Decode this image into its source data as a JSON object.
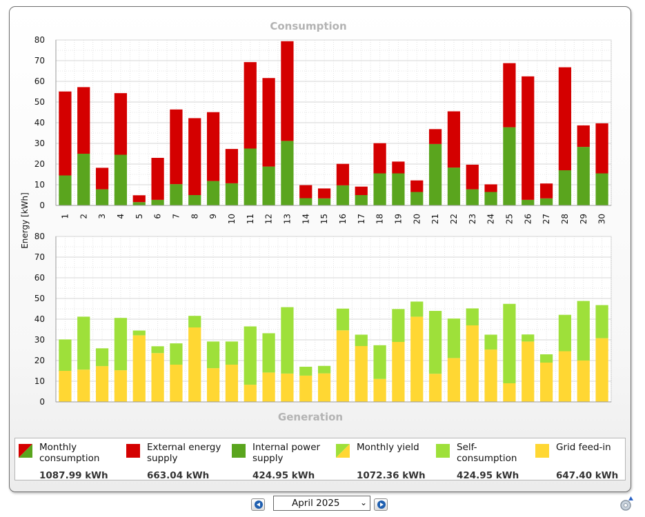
{
  "nav": {
    "month": "April 2025"
  },
  "legend": [
    {
      "label": "Monthly consumption",
      "value": "1087.99 kWh",
      "swatch": "split-red-green"
    },
    {
      "label": "External energy supply",
      "value": "663.04 kWh",
      "swatch": "#d40000"
    },
    {
      "label": "Internal power supply",
      "value": "424.95 kWh",
      "swatch": "#5aa51e"
    },
    {
      "label": "Monthly yield",
      "value": "1072.36 kWh",
      "swatch": "split-lightgreen-yellow"
    },
    {
      "label": "Self-consumption",
      "value": "424.95 kWh",
      "swatch": "#9ee03a"
    },
    {
      "label": "Grid feed-in",
      "value": "647.40 kWh",
      "swatch": "#ffd733"
    }
  ],
  "chart_data": [
    {
      "type": "bar",
      "stacked": true,
      "title": "Consumption",
      "ylabel": "Energy [kWh]",
      "ylim": [
        0,
        80
      ],
      "yticks": [
        0,
        10,
        20,
        30,
        40,
        50,
        60,
        70,
        80
      ],
      "grid": true,
      "categories": [
        "1",
        "2",
        "3",
        "4",
        "5",
        "6",
        "7",
        "8",
        "9",
        "10",
        "11",
        "12",
        "13",
        "14",
        "15",
        "16",
        "17",
        "18",
        "19",
        "20",
        "21",
        "22",
        "23",
        "24",
        "25",
        "26",
        "27",
        "28",
        "29",
        "30"
      ],
      "series": [
        {
          "name": "Internal power supply",
          "color": "#5aa51e",
          "values": [
            14.5,
            25,
            7.8,
            24.5,
            1.6,
            2.7,
            10.3,
            5,
            11.8,
            10.7,
            27.5,
            18.8,
            31.2,
            3.5,
            3.4,
            9.7,
            5,
            15.5,
            15.5,
            6.5,
            29.7,
            18.3,
            7.8,
            6.5,
            37.8,
            2.7,
            3.4,
            17,
            28.3,
            15.5
          ]
        },
        {
          "name": "External energy supply",
          "color": "#d40000",
          "values": [
            40.6,
            32.2,
            10.4,
            29.8,
            3.3,
            20.3,
            36.1,
            37.2,
            33.3,
            16.6,
            41.8,
            42.8,
            48.2,
            6.3,
            4.8,
            10.4,
            4.1,
            14.6,
            5.7,
            5.6,
            7.2,
            27.2,
            11.9,
            3.7,
            31,
            59.7,
            7.2,
            49.8,
            10.4,
            24.2
          ]
        }
      ]
    },
    {
      "type": "bar",
      "stacked": true,
      "title": "Generation",
      "ylabel": "Energy [kWh]",
      "ylim": [
        0,
        80
      ],
      "yticks": [
        0,
        10,
        20,
        30,
        40,
        50,
        60,
        70,
        80
      ],
      "grid": true,
      "categories": [
        "1",
        "2",
        "3",
        "4",
        "5",
        "6",
        "7",
        "8",
        "9",
        "10",
        "11",
        "12",
        "13",
        "14",
        "15",
        "16",
        "17",
        "18",
        "19",
        "20",
        "21",
        "22",
        "23",
        "24",
        "25",
        "26",
        "27",
        "28",
        "29",
        "30"
      ],
      "series": [
        {
          "name": "Grid feed-in",
          "color": "#ffd733",
          "values": [
            15,
            15.6,
            17.3,
            15.3,
            32.2,
            23.6,
            18,
            36,
            16.3,
            18,
            8.3,
            14.2,
            13.7,
            12.7,
            13.8,
            34.6,
            27,
            11.1,
            29,
            41.2,
            13.6,
            21.2,
            37,
            25.3,
            9,
            29.2,
            19,
            24.5,
            20,
            30.8
          ]
        },
        {
          "name": "Self-consumption",
          "color": "#9ee03a",
          "values": [
            15.2,
            25.6,
            8.6,
            25.3,
            2.3,
            3.3,
            10.3,
            5.6,
            12.9,
            11.2,
            28.2,
            19,
            32.1,
            4.3,
            3.6,
            10.5,
            5.5,
            16.3,
            15.9,
            7.3,
            30.4,
            19.1,
            8.2,
            7.2,
            38.4,
            3.4,
            4,
            17.6,
            28.8,
            16
          ]
        }
      ]
    }
  ]
}
